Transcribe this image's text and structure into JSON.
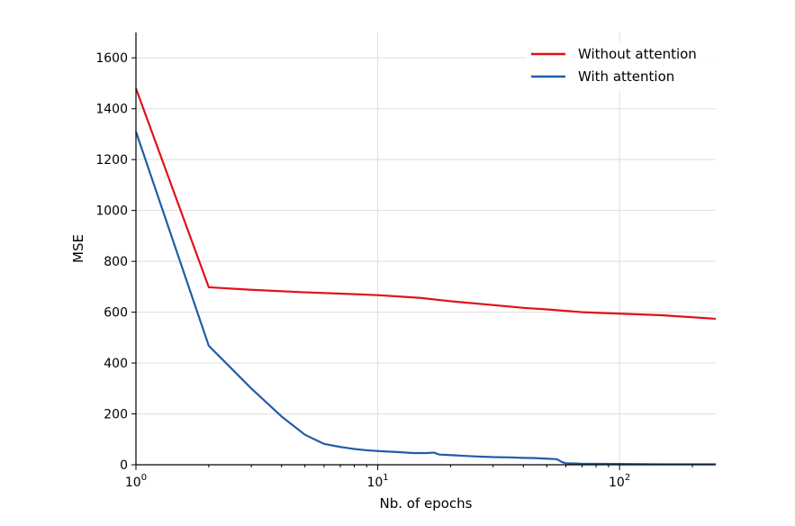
{
  "chart_data": {
    "type": "line",
    "title": "",
    "xlabel": "Nb. of epochs",
    "ylabel": "MSE",
    "xscale": "log",
    "xlim": [
      1,
      250
    ],
    "ylim": [
      0,
      1700
    ],
    "grid": true,
    "legend_position": "top-right",
    "x_major_ticks": [
      1,
      10,
      100
    ],
    "x_tick_labels": [
      {
        "base": "10",
        "exp": "0"
      },
      {
        "base": "10",
        "exp": "1"
      },
      {
        "base": "10",
        "exp": "2"
      }
    ],
    "y_ticks": [
      0,
      200,
      400,
      600,
      800,
      1000,
      1200,
      1400,
      1600
    ],
    "y_tick_labels": [
      "0",
      "200",
      "400",
      "600",
      "800",
      "1000",
      "1200",
      "1400",
      "1600"
    ],
    "series": [
      {
        "name": "Without attention",
        "color": "#e0111b",
        "points": [
          [
            1,
            1480
          ],
          [
            2,
            698
          ],
          [
            3,
            688
          ],
          [
            5,
            678
          ],
          [
            7,
            673
          ],
          [
            10,
            667
          ],
          [
            15,
            656
          ],
          [
            20,
            643
          ],
          [
            30,
            628
          ],
          [
            40,
            617
          ],
          [
            50,
            611
          ],
          [
            70,
            600
          ],
          [
            100,
            594
          ],
          [
            150,
            588
          ],
          [
            200,
            580
          ],
          [
            250,
            574
          ]
        ]
      },
      {
        "name": "With attention",
        "color": "#1f5ea8",
        "points": [
          [
            1,
            1310
          ],
          [
            2,
            468
          ],
          [
            3,
            300
          ],
          [
            4,
            190
          ],
          [
            5,
            118
          ],
          [
            6,
            82
          ],
          [
            7,
            70
          ],
          [
            8,
            62
          ],
          [
            9,
            57
          ],
          [
            10,
            54
          ],
          [
            12,
            50
          ],
          [
            14,
            46
          ],
          [
            16,
            46
          ],
          [
            17,
            48
          ],
          [
            18,
            40
          ],
          [
            20,
            38
          ],
          [
            25,
            33
          ],
          [
            30,
            30
          ],
          [
            35,
            29
          ],
          [
            40,
            27
          ],
          [
            45,
            26
          ],
          [
            50,
            24
          ],
          [
            55,
            22
          ],
          [
            58,
            10
          ],
          [
            60,
            6
          ],
          [
            70,
            4
          ],
          [
            100,
            3
          ],
          [
            150,
            2
          ],
          [
            200,
            2
          ],
          [
            250,
            2
          ]
        ]
      }
    ]
  }
}
